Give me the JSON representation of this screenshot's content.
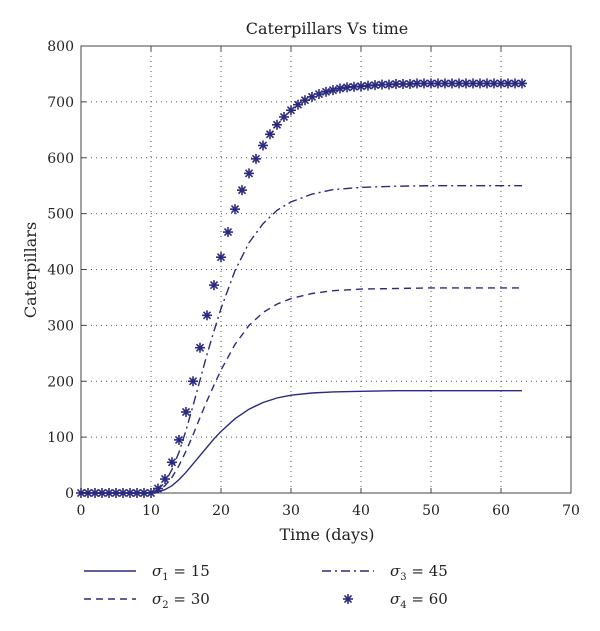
{
  "chart_data": {
    "type": "line",
    "title": "Caterpillars Vs time",
    "xlabel": "Time (days)",
    "ylabel": "Caterpillars",
    "xlim": [
      0,
      70
    ],
    "ylim": [
      0,
      800
    ],
    "xticks": [
      0,
      10,
      20,
      30,
      40,
      50,
      60,
      70
    ],
    "yticks": [
      0,
      100,
      200,
      300,
      400,
      500,
      600,
      700,
      800
    ],
    "grid": true,
    "legend_position": "bottom",
    "line_color": "#2b2a7e",
    "series": [
      {
        "symbol": "σ",
        "subscript": "1",
        "value_text": " = 15",
        "style": "solid",
        "x": [
          0,
          10,
          11,
          12,
          13,
          14,
          15,
          16,
          17,
          18,
          19,
          20,
          22,
          24,
          26,
          28,
          30,
          33,
          36,
          40,
          45,
          50,
          55,
          60,
          63
        ],
        "y": [
          0,
          0,
          2,
          6,
          13,
          24,
          37,
          52,
          67,
          82,
          97,
          110,
          133,
          150,
          162,
          170,
          175,
          179,
          181,
          182,
          183,
          183,
          183,
          183,
          183
        ]
      },
      {
        "symbol": "σ",
        "subscript": "2",
        "value_text": " = 30",
        "style": "dashed",
        "x": [
          0,
          10,
          11,
          12,
          13,
          14,
          15,
          16,
          17,
          18,
          19,
          20,
          22,
          24,
          26,
          28,
          30,
          33,
          36,
          40,
          45,
          50,
          55,
          60,
          63
        ],
        "y": [
          0,
          0,
          4,
          13,
          28,
          49,
          75,
          104,
          135,
          165,
          193,
          220,
          266,
          300,
          323,
          338,
          348,
          357,
          362,
          365,
          366,
          367,
          367,
          367,
          367
        ]
      },
      {
        "symbol": "σ",
        "subscript": "3",
        "value_text": " = 45",
        "style": "dashdot",
        "x": [
          0,
          10,
          11,
          12,
          13,
          14,
          15,
          16,
          17,
          18,
          19,
          20,
          22,
          24,
          26,
          28,
          30,
          33,
          36,
          40,
          45,
          50,
          55,
          60,
          63
        ],
        "y": [
          0,
          0,
          6,
          19,
          42,
          73,
          112,
          156,
          202,
          248,
          290,
          330,
          398,
          448,
          482,
          506,
          521,
          535,
          543,
          547,
          549,
          550,
          550,
          550,
          550
        ]
      },
      {
        "symbol": "σ",
        "subscript": "4",
        "value_text": " = 60",
        "style": "markers",
        "x": [
          0,
          1,
          2,
          3,
          4,
          5,
          6,
          7,
          8,
          9,
          10,
          11,
          12,
          13,
          14,
          15,
          16,
          17,
          18,
          19,
          20,
          21,
          22,
          23,
          24,
          25,
          26,
          27,
          28,
          29,
          30,
          31,
          32,
          33,
          34,
          35,
          36,
          37,
          38,
          39,
          40,
          41,
          42,
          43,
          44,
          45,
          46,
          47,
          48,
          49,
          50,
          51,
          52,
          53,
          54,
          55,
          56,
          57,
          58,
          59,
          60,
          61,
          62,
          63
        ],
        "y": [
          0,
          0,
          0,
          0,
          0,
          0,
          0,
          0,
          0,
          0,
          0,
          8,
          25,
          55,
          95,
          145,
          200,
          260,
          318,
          372,
          422,
          467,
          508,
          542,
          572,
          598,
          622,
          642,
          659,
          673,
          685,
          695,
          703,
          709,
          714,
          718,
          721,
          724,
          726,
          727,
          728,
          729,
          730,
          731,
          731,
          732,
          732,
          732,
          733,
          733,
          733,
          733,
          733,
          733,
          733,
          733,
          733,
          733,
          733,
          733,
          733,
          733,
          733,
          733
        ]
      }
    ]
  }
}
